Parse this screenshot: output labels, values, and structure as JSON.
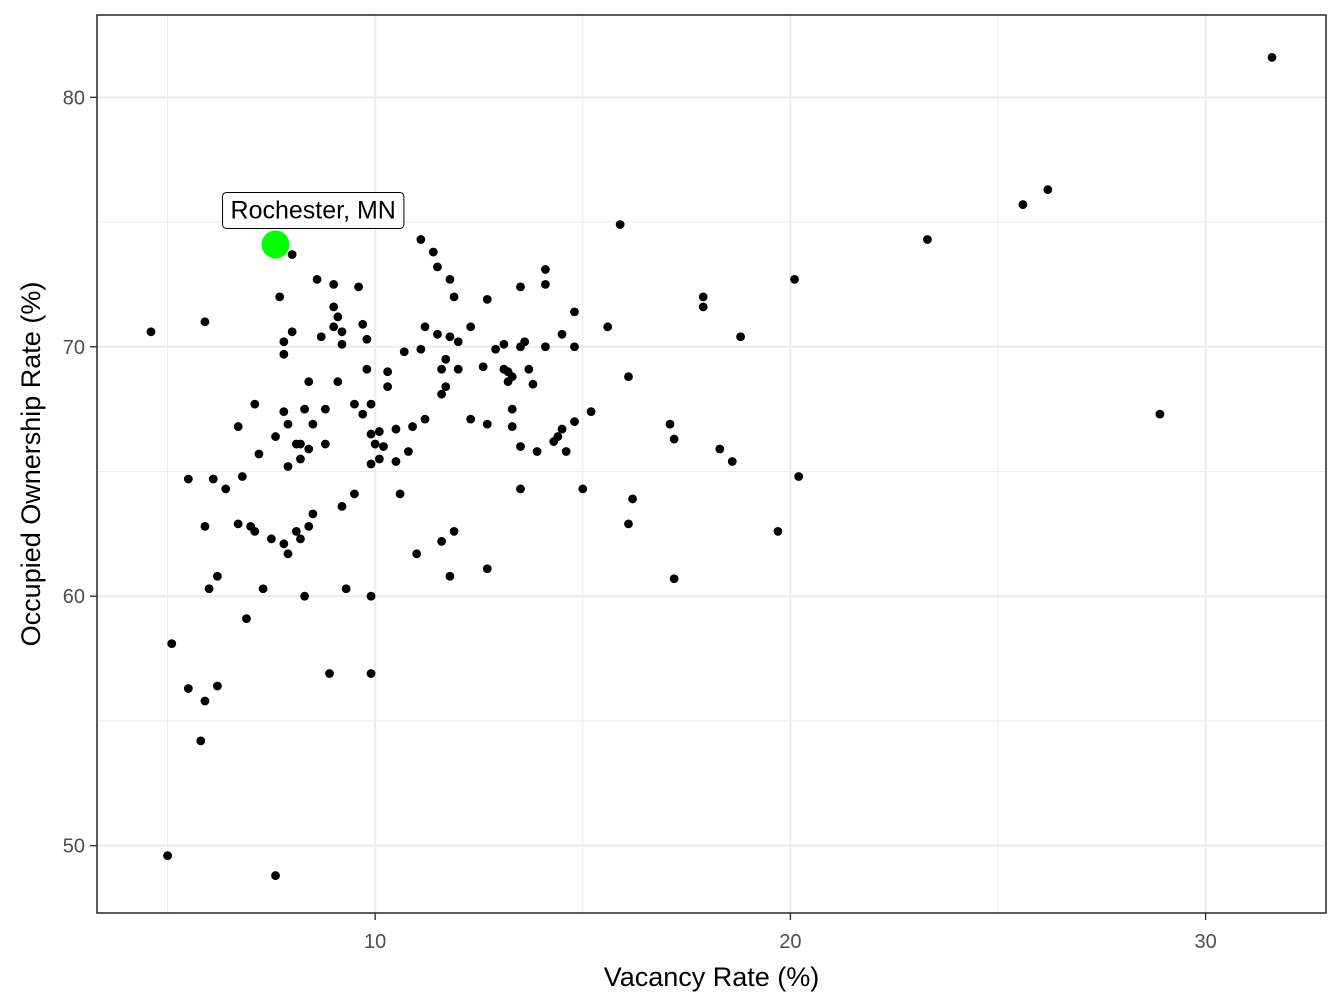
{
  "chart_data": {
    "type": "scatter",
    "xlabel": "Vacancy Rate (%)",
    "ylabel": "Occupied Ownership Rate (%)",
    "xlim": [
      3.3,
      32.9
    ],
    "ylim": [
      47.3,
      83.3
    ],
    "x_ticks": [
      10,
      20,
      30
    ],
    "y_ticks": [
      50,
      60,
      70,
      80
    ],
    "x_minor_ticks": [
      5,
      15,
      25
    ],
    "y_minor_ticks": [
      55,
      65,
      75
    ],
    "grid": true,
    "colors": {
      "points": "#000000",
      "highlight": "#00ff00",
      "grid": "#ebebeb",
      "panel_border": "#333333"
    },
    "highlight": {
      "label": "Rochester, MN",
      "x": 7.6,
      "y": 74.1
    },
    "points": [
      [
        4.6,
        70.6
      ],
      [
        5.0,
        49.6
      ],
      [
        5.1,
        58.1
      ],
      [
        5.5,
        64.7
      ],
      [
        5.5,
        56.3
      ],
      [
        5.8,
        54.2
      ],
      [
        5.9,
        62.8
      ],
      [
        5.9,
        71.0
      ],
      [
        5.9,
        55.8
      ],
      [
        6.0,
        60.3
      ],
      [
        6.1,
        64.7
      ],
      [
        6.2,
        60.8
      ],
      [
        6.2,
        56.4
      ],
      [
        6.4,
        64.3
      ],
      [
        6.7,
        62.9
      ],
      [
        6.7,
        66.8
      ],
      [
        6.8,
        64.8
      ],
      [
        6.9,
        59.1
      ],
      [
        7.0,
        62.8
      ],
      [
        7.1,
        62.6
      ],
      [
        7.1,
        67.7
      ],
      [
        7.2,
        65.7
      ],
      [
        7.3,
        60.3
      ],
      [
        7.5,
        62.3
      ],
      [
        7.6,
        66.4
      ],
      [
        7.6,
        48.8
      ],
      [
        7.7,
        72.0
      ],
      [
        7.8,
        62.1
      ],
      [
        7.8,
        69.7
      ],
      [
        7.8,
        70.2
      ],
      [
        7.8,
        67.4
      ],
      [
        7.9,
        66.9
      ],
      [
        7.9,
        65.2
      ],
      [
        7.9,
        61.7
      ],
      [
        8.0,
        73.7
      ],
      [
        8.0,
        70.6
      ],
      [
        8.1,
        66.1
      ],
      [
        8.1,
        62.6
      ],
      [
        8.2,
        66.1
      ],
      [
        8.2,
        62.3
      ],
      [
        8.2,
        65.5
      ],
      [
        8.3,
        67.5
      ],
      [
        8.3,
        60.0
      ],
      [
        8.4,
        68.6
      ],
      [
        8.4,
        62.8
      ],
      [
        8.4,
        65.9
      ],
      [
        8.5,
        63.3
      ],
      [
        8.5,
        66.9
      ],
      [
        8.6,
        72.7
      ],
      [
        8.7,
        70.4
      ],
      [
        8.8,
        67.5
      ],
      [
        8.8,
        66.1
      ],
      [
        8.9,
        56.9
      ],
      [
        9.0,
        71.6
      ],
      [
        9.0,
        70.8
      ],
      [
        9.0,
        72.5
      ],
      [
        9.1,
        71.2
      ],
      [
        9.1,
        68.6
      ],
      [
        9.2,
        70.6
      ],
      [
        9.2,
        70.1
      ],
      [
        9.2,
        63.6
      ],
      [
        9.3,
        60.3
      ],
      [
        9.5,
        64.1
      ],
      [
        9.5,
        67.7
      ],
      [
        9.6,
        72.4
      ],
      [
        9.7,
        67.3
      ],
      [
        9.7,
        70.9
      ],
      [
        9.8,
        70.3
      ],
      [
        9.8,
        69.1
      ],
      [
        9.9,
        67.7
      ],
      [
        9.9,
        66.5
      ],
      [
        9.9,
        65.3
      ],
      [
        9.9,
        56.9
      ],
      [
        9.9,
        60.0
      ],
      [
        10.0,
        66.1
      ],
      [
        10.1,
        66.6
      ],
      [
        10.1,
        65.5
      ],
      [
        10.2,
        66.0
      ],
      [
        10.3,
        68.4
      ],
      [
        10.3,
        69.0
      ],
      [
        10.5,
        65.4
      ],
      [
        10.5,
        66.7
      ],
      [
        10.6,
        64.1
      ],
      [
        10.7,
        69.8
      ],
      [
        10.8,
        65.8
      ],
      [
        10.9,
        66.8
      ],
      [
        11.0,
        61.7
      ],
      [
        11.1,
        69.9
      ],
      [
        11.1,
        74.3
      ],
      [
        11.2,
        67.1
      ],
      [
        11.2,
        70.8
      ],
      [
        11.4,
        73.8
      ],
      [
        11.5,
        73.2
      ],
      [
        11.5,
        70.5
      ],
      [
        11.6,
        69.1
      ],
      [
        11.6,
        68.1
      ],
      [
        11.6,
        62.2
      ],
      [
        11.7,
        69.5
      ],
      [
        11.7,
        68.4
      ],
      [
        11.8,
        72.7
      ],
      [
        11.8,
        70.4
      ],
      [
        11.8,
        60.8
      ],
      [
        11.9,
        72.0
      ],
      [
        11.9,
        62.6
      ],
      [
        12.0,
        70.2
      ],
      [
        12.0,
        69.1
      ],
      [
        12.3,
        70.8
      ],
      [
        12.3,
        67.1
      ],
      [
        12.6,
        69.2
      ],
      [
        12.7,
        66.9
      ],
      [
        12.7,
        71.9
      ],
      [
        12.7,
        61.1
      ],
      [
        12.9,
        69.9
      ],
      [
        13.1,
        70.1
      ],
      [
        13.1,
        69.1
      ],
      [
        13.2,
        68.6
      ],
      [
        13.2,
        69.0
      ],
      [
        13.3,
        67.5
      ],
      [
        13.3,
        66.8
      ],
      [
        13.3,
        68.8
      ],
      [
        13.5,
        66.0
      ],
      [
        13.5,
        70.0
      ],
      [
        13.5,
        72.4
      ],
      [
        13.5,
        64.3
      ],
      [
        13.6,
        70.2
      ],
      [
        13.7,
        69.1
      ],
      [
        13.8,
        68.5
      ],
      [
        13.9,
        65.8
      ],
      [
        14.1,
        70.0
      ],
      [
        14.1,
        73.1
      ],
      [
        14.1,
        72.5
      ],
      [
        14.3,
        66.2
      ],
      [
        14.4,
        66.4
      ],
      [
        14.5,
        66.7
      ],
      [
        14.5,
        70.5
      ],
      [
        14.6,
        65.8
      ],
      [
        14.8,
        67.0
      ],
      [
        14.8,
        71.4
      ],
      [
        14.8,
        70.0
      ],
      [
        15.0,
        64.3
      ],
      [
        15.2,
        67.4
      ],
      [
        15.6,
        70.8
      ],
      [
        15.9,
        74.9
      ],
      [
        16.1,
        68.8
      ],
      [
        16.1,
        62.9
      ],
      [
        16.2,
        63.9
      ],
      [
        17.1,
        66.9
      ],
      [
        17.2,
        66.3
      ],
      [
        17.2,
        60.7
      ],
      [
        17.9,
        72.0
      ],
      [
        17.9,
        71.6
      ],
      [
        18.3,
        65.9
      ],
      [
        18.6,
        65.4
      ],
      [
        18.8,
        70.4
      ],
      [
        19.7,
        62.6
      ],
      [
        20.1,
        72.7
      ],
      [
        20.2,
        64.8
      ],
      [
        23.3,
        74.3
      ],
      [
        25.6,
        75.7
      ],
      [
        26.2,
        76.3
      ],
      [
        28.9,
        67.3
      ],
      [
        31.6,
        81.6
      ]
    ]
  }
}
